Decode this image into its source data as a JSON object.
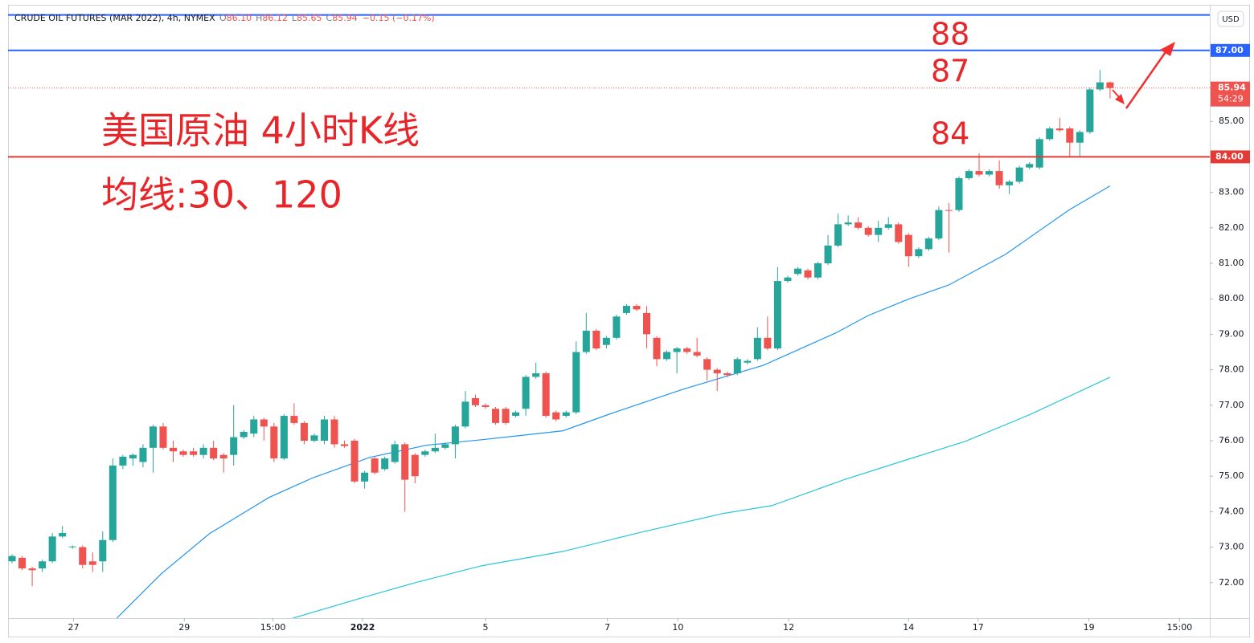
{
  "chart_data": {
    "type": "candlestick",
    "title": "CRUDE OIL FUTURES (MAR 2022), 4h, NYMEX",
    "ohlc_header": [
      {
        "key": "O",
        "value": "86.10"
      },
      {
        "key": "H",
        "value": "86.12"
      },
      {
        "key": "L",
        "value": "85.65"
      },
      {
        "key": "C",
        "value": "85.94"
      }
    ],
    "change": "−0.15 (−0.17%)",
    "currency": "USD",
    "annotations": [
      "88",
      "87",
      "84",
      "美国原油 4小时K线",
      "均线:30、120"
    ],
    "up_color": "#26a69a",
    "down_color": "#ef5350",
    "ylim": [
      71.0,
      88.24
    ],
    "yticks": [
      {
        "value": 72,
        "label": "72.00"
      },
      {
        "value": 73,
        "label": "73.00"
      },
      {
        "value": 74,
        "label": "74.00"
      },
      {
        "value": 75,
        "label": "75.00"
      },
      {
        "value": 76,
        "label": "76.00"
      },
      {
        "value": 77,
        "label": "77.00"
      },
      {
        "value": 78,
        "label": "78.00"
      },
      {
        "value": 79,
        "label": "79.00"
      },
      {
        "value": 80,
        "label": "80.00"
      },
      {
        "value": 81,
        "label": "81.00"
      },
      {
        "value": 82,
        "label": "82.00"
      },
      {
        "value": 83,
        "label": "83.00"
      },
      {
        "value": 84,
        "label": "84.00"
      },
      {
        "value": 85,
        "label": "85.00"
      }
    ],
    "xlim": [
      -0.4,
      118.9
    ],
    "xticks": [
      {
        "value": 6.1,
        "label": "27"
      },
      {
        "value": 17.1,
        "label": "29"
      },
      {
        "value": 25.9,
        "label": "15:00"
      },
      {
        "value": 34.8,
        "label": "2022"
      },
      {
        "value": 47.0,
        "label": "5"
      },
      {
        "value": 59.1,
        "label": "7"
      },
      {
        "value": 66.1,
        "label": "10"
      },
      {
        "value": 77.1,
        "label": "12"
      },
      {
        "value": 89.0,
        "label": "14"
      },
      {
        "value": 95.9,
        "label": "17"
      },
      {
        "value": 106.9,
        "label": "19"
      },
      {
        "value": 115.9,
        "label": "15:00"
      }
    ],
    "levels": [
      {
        "value": 88,
        "color": "#2962ff"
      },
      {
        "value": 87,
        "label": "87.00",
        "color": "#2962ff"
      },
      {
        "value": 84,
        "label": "84.00",
        "color": "#e53935"
      }
    ],
    "last_price": {
      "value": 85.94,
      "label": "85.94",
      "countdown": "54:29",
      "color": "#ef5350"
    },
    "candles": [
      [
        72.6,
        72.75,
        72.8,
        72.55
      ],
      [
        72.7,
        72.4,
        72.75,
        72.35
      ],
      [
        72.4,
        72.35,
        72.45,
        71.9
      ],
      [
        72.4,
        72.6,
        72.65,
        72.3
      ],
      [
        72.6,
        73.3,
        73.4,
        72.55
      ],
      [
        73.3,
        73.4,
        73.6,
        73.25
      ],
      [
        73.0,
        73.02,
        73.05,
        72.95
      ],
      [
        73.0,
        72.5,
        73.05,
        72.4
      ],
      [
        72.6,
        72.5,
        72.85,
        72.3
      ],
      [
        72.6,
        73.2,
        73.45,
        72.3
      ],
      [
        73.2,
        75.3,
        75.5,
        73.15
      ],
      [
        75.3,
        75.55,
        75.6,
        75.2
      ],
      [
        75.5,
        75.6,
        75.65,
        75.3
      ],
      [
        75.4,
        75.8,
        75.9,
        75.25
      ],
      [
        75.8,
        76.4,
        76.45,
        75.1
      ],
      [
        76.4,
        75.8,
        76.5,
        75.75
      ],
      [
        75.8,
        75.7,
        76.0,
        75.4
      ],
      [
        75.7,
        75.6,
        75.75,
        75.55
      ],
      [
        75.7,
        75.6,
        75.8,
        75.55
      ],
      [
        75.6,
        75.8,
        75.9,
        75.5
      ],
      [
        75.8,
        75.5,
        76.0,
        75.45
      ],
      [
        75.6,
        75.5,
        75.65,
        75.1
      ],
      [
        75.6,
        76.1,
        77.0,
        75.3
      ],
      [
        76.1,
        76.25,
        76.3,
        76.05
      ],
      [
        76.2,
        76.6,
        76.7,
        76.1
      ],
      [
        76.6,
        76.4,
        76.65,
        76.0
      ],
      [
        76.4,
        75.5,
        76.5,
        75.4
      ],
      [
        75.5,
        76.7,
        76.75,
        75.45
      ],
      [
        76.7,
        76.5,
        77.05,
        76.45
      ],
      [
        76.5,
        76.0,
        76.55,
        75.9
      ],
      [
        76.0,
        76.15,
        76.2,
        75.95
      ],
      [
        76.0,
        76.6,
        76.7,
        75.9
      ],
      [
        76.6,
        75.9,
        76.7,
        75.8
      ],
      [
        75.9,
        75.85,
        76.0,
        75.8
      ],
      [
        76.0,
        74.85,
        76.05,
        74.8
      ],
      [
        74.85,
        75.1,
        75.15,
        74.65
      ],
      [
        75.5,
        75.1,
        75.55,
        75.05
      ],
      [
        75.2,
        75.5,
        75.55,
        75.15
      ],
      [
        75.4,
        75.9,
        76.0,
        75.35
      ],
      [
        75.9,
        74.9,
        75.95,
        74.0
      ],
      [
        75.6,
        75.0,
        75.65,
        74.8
      ],
      [
        75.6,
        75.7,
        75.75,
        75.55
      ],
      [
        75.7,
        75.8,
        76.2,
        75.65
      ],
      [
        75.8,
        75.9,
        75.95,
        75.75
      ],
      [
        75.9,
        76.4,
        76.45,
        75.5
      ],
      [
        76.4,
        77.1,
        77.4,
        76.35
      ],
      [
        77.2,
        77.0,
        77.3,
        76.95
      ],
      [
        77.0,
        76.95,
        77.05,
        76.9
      ],
      [
        76.9,
        76.5,
        76.95,
        76.45
      ],
      [
        76.9,
        76.5,
        76.95,
        76.45
      ],
      [
        76.7,
        76.8,
        76.85,
        76.65
      ],
      [
        76.9,
        77.8,
        77.85,
        76.7
      ],
      [
        77.8,
        77.9,
        78.2,
        77.75
      ],
      [
        77.9,
        76.7,
        77.95,
        76.65
      ],
      [
        76.8,
        76.6,
        76.85,
        76.55
      ],
      [
        76.7,
        76.8,
        76.85,
        76.65
      ],
      [
        76.8,
        78.5,
        78.8,
        76.75
      ],
      [
        78.5,
        79.1,
        79.6,
        78.45
      ],
      [
        79.1,
        78.6,
        79.15,
        78.55
      ],
      [
        78.7,
        78.9,
        78.95,
        78.6
      ],
      [
        78.9,
        79.5,
        79.55,
        78.85
      ],
      [
        79.6,
        79.8,
        79.85,
        79.55
      ],
      [
        79.8,
        79.7,
        79.85,
        79.65
      ],
      [
        79.6,
        79.0,
        79.8,
        78.6
      ],
      [
        78.9,
        78.3,
        78.95,
        78.1
      ],
      [
        78.3,
        78.5,
        78.55,
        78.25
      ],
      [
        78.5,
        78.6,
        78.65,
        77.9
      ],
      [
        78.6,
        78.5,
        78.65,
        78.45
      ],
      [
        78.5,
        78.4,
        78.9,
        78.35
      ],
      [
        78.3,
        78.0,
        78.35,
        77.7
      ],
      [
        78.0,
        77.9,
        78.05,
        77.4
      ],
      [
        77.9,
        77.85,
        77.95,
        77.8
      ],
      [
        77.9,
        78.3,
        78.35,
        77.85
      ],
      [
        78.2,
        78.25,
        78.3,
        78.15
      ],
      [
        78.3,
        78.9,
        79.2,
        78.25
      ],
      [
        78.9,
        78.6,
        79.5,
        78.55
      ],
      [
        78.6,
        80.5,
        80.9,
        78.55
      ],
      [
        80.5,
        80.6,
        80.65,
        80.45
      ],
      [
        80.7,
        80.85,
        80.9,
        80.65
      ],
      [
        80.8,
        80.6,
        80.85,
        80.55
      ],
      [
        80.6,
        81.0,
        81.05,
        80.55
      ],
      [
        81.0,
        81.5,
        81.8,
        80.95
      ],
      [
        81.5,
        82.1,
        82.4,
        81.45
      ],
      [
        82.1,
        82.15,
        82.35,
        82.05
      ],
      [
        82.15,
        82.0,
        82.3,
        81.95
      ],
      [
        82.0,
        81.8,
        82.05,
        81.75
      ],
      [
        81.8,
        82.0,
        82.2,
        81.6
      ],
      [
        82.0,
        82.1,
        82.3,
        81.95
      ],
      [
        82.1,
        81.6,
        82.15,
        81.55
      ],
      [
        81.8,
        81.2,
        81.85,
        80.9
      ],
      [
        81.2,
        81.4,
        81.45,
        81.15
      ],
      [
        81.4,
        81.7,
        81.75,
        81.35
      ],
      [
        81.7,
        82.5,
        82.6,
        81.65
      ],
      [
        82.5,
        82.48,
        82.7,
        81.3
      ],
      [
        82.5,
        83.4,
        83.45,
        82.45
      ],
      [
        83.4,
        83.6,
        83.65,
        83.35
      ],
      [
        83.6,
        83.5,
        84.1,
        83.45
      ],
      [
        83.5,
        83.6,
        83.65,
        83.45
      ],
      [
        83.6,
        83.2,
        83.9,
        83.1
      ],
      [
        83.2,
        83.3,
        83.35,
        82.95
      ],
      [
        83.3,
        83.7,
        83.75,
        83.25
      ],
      [
        83.7,
        83.8,
        83.85,
        83.65
      ],
      [
        83.7,
        84.5,
        84.55,
        83.65
      ],
      [
        84.5,
        84.8,
        84.85,
        84.45
      ],
      [
        84.8,
        84.75,
        85.1,
        84.7
      ],
      [
        84.8,
        84.4,
        84.85,
        84.0
      ],
      [
        84.4,
        84.7,
        84.75,
        84.0
      ],
      [
        84.7,
        85.9,
        85.95,
        84.65
      ],
      [
        85.9,
        86.1,
        86.45,
        85.85
      ],
      [
        86.1,
        85.94,
        86.12,
        85.65
      ]
    ],
    "series": [
      {
        "color": "#2196f3",
        "x": [
          10.4,
          14.8,
          19.6,
          25.5,
          29.9,
          35.5,
          41.1,
          46.7,
          54.7,
          59.5,
          66.6,
          74.6,
          81.8,
          85.0,
          89.0,
          93.0,
          98.6,
          104.9,
          109
        ],
        "values": [
          71.0,
          72.25,
          73.38,
          74.4,
          74.96,
          75.53,
          75.87,
          76.03,
          76.28,
          76.77,
          77.45,
          78.13,
          79.04,
          79.53,
          79.99,
          80.39,
          81.25,
          82.5,
          83.18
        ]
      },
      {
        "color": "#26c6da",
        "x": [
          27.9,
          34.7,
          40.3,
          46.7,
          54.7,
          62.6,
          70.6,
          75.4,
          82.6,
          89.0,
          94.6,
          101.0,
          109
        ],
        "values": [
          71.0,
          71.57,
          72.02,
          72.48,
          72.88,
          73.43,
          73.95,
          74.17,
          74.9,
          75.48,
          75.98,
          76.73,
          77.79
        ]
      }
    ]
  }
}
